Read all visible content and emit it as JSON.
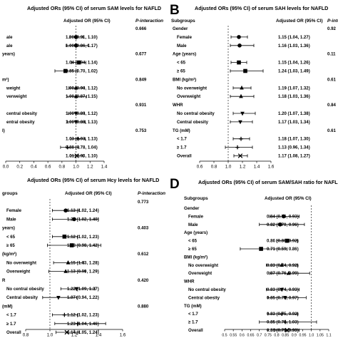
{
  "chart_data": [
    {
      "panel": "",
      "type": "forest",
      "title": "Adjusted ORs (95% CI) of serum SAM levels for NAFLD",
      "col_or": "Adjusted OR (95% CI)",
      "col_p": "P-interaction",
      "xlim": [
        0.0,
        1.4
      ],
      "ticks": [
        "0.0",
        "0.2",
        "0.4",
        "0.6",
        "0.8",
        "1.0",
        "1.2",
        "1.4"
      ],
      "rows": [
        {
          "label": "",
          "group": true,
          "p": "0.666"
        },
        {
          "label": "ale",
          "or": 1.0,
          "lo": 0.91,
          "hi": 1.1,
          "text": "1.00 (0.91, 1.10)",
          "marker": "circle"
        },
        {
          "label": "ale",
          "or": 1.0,
          "lo": 0.86,
          "hi": 1.17,
          "text": "1.00 (0.86, 1.17)",
          "marker": "circle"
        },
        {
          "label": "years)",
          "group": true,
          "p": "0.677"
        },
        {
          "label": "",
          "or": 1.04,
          "lo": 0.94,
          "hi": 1.14,
          "text": "1.04 (0.94, 1.14)",
          "marker": "square"
        },
        {
          "label": "",
          "or": 0.85,
          "lo": 0.7,
          "hi": 1.02,
          "text": "0.85 (0.70, 1.02)",
          "marker": "square"
        },
        {
          "label": "m²)",
          "group": true,
          "p": "0.849"
        },
        {
          "label": "weight",
          "or": 1.0,
          "lo": 0.9,
          "hi": 1.12,
          "text": "1.00 (0.90, 1.12)",
          "marker": "triangle"
        },
        {
          "label": "verweight",
          "or": 1.0,
          "lo": 0.87,
          "hi": 1.15,
          "text": "1.00 (0.87, 1.15)",
          "marker": "triangle"
        },
        {
          "label": "",
          "group": true,
          "p": "0.931"
        },
        {
          "label": "central obesity",
          "or": 1.0,
          "lo": 0.89,
          "hi": 1.12,
          "text": "1.00 (0.89, 1.12)",
          "marker": "tri-down"
        },
        {
          "label": "entral obesity",
          "or": 1.0,
          "lo": 0.88,
          "hi": 1.13,
          "text": "1.00 (0.88, 1.13)",
          "marker": "tri-down"
        },
        {
          "label": "I)",
          "group": true,
          "p": "0.753"
        },
        {
          "label": "",
          "or": 1.03,
          "lo": 0.93,
          "hi": 1.13,
          "text": "1.03 (0.93, 1.13)",
          "marker": "plus"
        },
        {
          "label": "",
          "or": 0.88,
          "lo": 0.78,
          "hi": 1.04,
          "text": "0.88 (0.78, 1.04)",
          "marker": "plus"
        },
        {
          "label": "",
          "or": 1.01,
          "lo": 0.93,
          "hi": 1.1,
          "text": "1.01 (0.93, 1.10)",
          "marker": "x"
        }
      ]
    },
    {
      "panel": "B",
      "type": "forest",
      "title": "Adjusted ORs (95% CI) of serum SAH levels for NAFLD",
      "col_group": "Subgroups",
      "col_or": "Adjusted OR (95% CI)",
      "col_p": "P-interactio",
      "xlim": [
        0.6,
        1.6
      ],
      "ticks": [
        "0.6",
        "0.8",
        "1.0",
        "1.2",
        "1.4",
        "1.6"
      ],
      "rows": [
        {
          "label": "Gender",
          "group": true,
          "p": "0.92"
        },
        {
          "label": "Female",
          "or": 1.15,
          "lo": 1.04,
          "hi": 1.27,
          "text": "1.15 (1.04, 1.27)",
          "marker": "circle"
        },
        {
          "label": "Male",
          "or": 1.16,
          "lo": 1.03,
          "hi": 1.36,
          "text": "1.16 (1.03, 1.36)",
          "marker": "circle"
        },
        {
          "label": "Age (years)",
          "group": true,
          "p": "0.11"
        },
        {
          "label": "< 65",
          "or": 1.15,
          "lo": 1.04,
          "hi": 1.26,
          "text": "1.15 (1.04, 1.26)",
          "marker": "square"
        },
        {
          "label": "≥ 65",
          "or": 1.24,
          "lo": 1.03,
          "hi": 1.49,
          "text": "1.24 (1.03, 1.49)",
          "marker": "square"
        },
        {
          "label": "BMI (kg/m²)",
          "group": true,
          "p": "0.61"
        },
        {
          "label": "No overweight",
          "or": 1.19,
          "lo": 1.07,
          "hi": 1.32,
          "text": "1.19 (1.07, 1.32)",
          "marker": "triangle"
        },
        {
          "label": "Overweight",
          "or": 1.18,
          "lo": 1.03,
          "hi": 1.36,
          "text": "1.18 (1.03, 1.36)",
          "marker": "triangle"
        },
        {
          "label": "WHR",
          "group": true,
          "p": "0.84"
        },
        {
          "label": "No central obesity",
          "or": 1.2,
          "lo": 1.07,
          "hi": 1.38,
          "text": "1.20 (1.07, 1.38)",
          "marker": "tri-down"
        },
        {
          "label": "Central obesity",
          "or": 1.17,
          "lo": 1.03,
          "hi": 1.34,
          "text": "1.17 (1.03, 1.34)",
          "marker": "tri-down"
        },
        {
          "label": "TG (mM)",
          "group": true,
          "p": "0.61"
        },
        {
          "label": "< 1.7",
          "or": 1.18,
          "lo": 1.07,
          "hi": 1.3,
          "text": "1.18 (1.07, 1.30)",
          "marker": "plus"
        },
        {
          "label": "≥ 1.7",
          "or": 1.13,
          "lo": 0.96,
          "hi": 1.34,
          "text": "1.13 (0.96, 1.34)",
          "marker": "plus"
        },
        {
          "label": "Overall",
          "or": 1.17,
          "lo": 1.08,
          "hi": 1.27,
          "text": "1.17 (1.08, 1.27)",
          "marker": "x"
        }
      ]
    },
    {
      "panel": "",
      "type": "forest",
      "title": "Adjusted ORs (95% CI) of serum Hcy levels for NAFLD",
      "col_group": "groups",
      "col_or": "Adjusted OR (95% CI)",
      "col_p": "P-interaction",
      "xlim": [
        0.8,
        1.6
      ],
      "ticks": [
        "0.8",
        "1.0",
        "1.2",
        "1.4",
        "1.6"
      ],
      "rows": [
        {
          "label": "",
          "group": true,
          "p": "0.773"
        },
        {
          "label": "Female",
          "or": 1.13,
          "lo": 1.02,
          "hi": 1.24,
          "text": "1.13 (1.02, 1.24)",
          "marker": "circle"
        },
        {
          "label": "Male",
          "or": 1.2,
          "lo": 1.02,
          "hi": 1.4,
          "text": "1.20 (1.02, 1.40)",
          "marker": "circle"
        },
        {
          "label": "years)",
          "group": true,
          "p": "0.403"
        },
        {
          "label": "< 65",
          "or": 1.12,
          "lo": 1.02,
          "hi": 1.23,
          "text": "1.12 (1.02, 1.23)",
          "marker": "square"
        },
        {
          "label": "≥ 65",
          "or": 1.18,
          "lo": 0.98,
          "hi": 1.42,
          "text": "1.18 (0.98, 1.42)",
          "marker": "square"
        },
        {
          "label": "(kg/m²)",
          "group": true,
          "p": "0.612"
        },
        {
          "label": "No overweight",
          "or": 1.15,
          "lo": 1.03,
          "hi": 1.28,
          "text": "1.15 (1.03, 1.28)",
          "marker": "triangle"
        },
        {
          "label": "Overweight",
          "or": 1.13,
          "lo": 0.99,
          "hi": 1.29,
          "text": "1.13 (0.99, 1.29)",
          "marker": "triangle"
        },
        {
          "label": "R",
          "group": true,
          "p": "0.420"
        },
        {
          "label": "No central obesity",
          "or": 1.22,
          "lo": 1.09,
          "hi": 1.37,
          "text": "1.22 (1.09, 1.37)",
          "marker": "tri-down"
        },
        {
          "label": "Central obesity",
          "or": 1.07,
          "lo": 0.94,
          "hi": 1.22,
          "text": "1.07 (0.94, 1.22)",
          "marker": "tri-down"
        },
        {
          "label": "(mM)",
          "group": true,
          "p": "0.880"
        },
        {
          "label": "< 1.7",
          "or": 1.12,
          "lo": 1.02,
          "hi": 1.23,
          "text": "1.12 (1.02, 1.23)",
          "marker": "plus"
        },
        {
          "label": "≥ 1.7",
          "or": 1.23,
          "lo": 1.04,
          "hi": 1.46,
          "text": "1.23 (1.04, 1.46)",
          "marker": "plus"
        },
        {
          "label": "Overall",
          "or": 1.14,
          "lo": 1.05,
          "hi": 1.24,
          "text": "1.14 (1.05, 1.24)",
          "marker": "x"
        }
      ]
    },
    {
      "panel": "D",
      "type": "forest",
      "title": "Adjusted ORs (95% CI) of serum SAM/SAH ratio for NAFL",
      "col_group": "Subgroups",
      "col_or": "Adjusted OR (95% CI)",
      "col_p": "",
      "xlim": [
        0.5,
        1.1
      ],
      "ticks": [
        "0.5",
        "0.55",
        "0.6",
        "0.65",
        "0.7",
        "0.75",
        "0.8",
        "0.85",
        "0.9",
        "0.95",
        "1.0",
        "1.05",
        "1.1"
      ],
      "rows": [
        {
          "label": "Gender",
          "group": true,
          "p": ""
        },
        {
          "label": "Female",
          "or": 0.84,
          "lo": 0.76,
          "hi": 0.93,
          "text": "0.84 (0.76, 0.93)",
          "marker": "circle"
        },
        {
          "label": "Male",
          "or": 0.82,
          "lo": 0.7,
          "hi": 0.96,
          "text": "0.82 (0.70, 0.96)",
          "marker": "circle"
        },
        {
          "label": "Age (years)",
          "group": true,
          "p": ""
        },
        {
          "label": "< 65",
          "or": 0.86,
          "lo": 0.8,
          "hi": 0.92,
          "text": "0.86 (0.80, 0.92)",
          "marker": "square"
        },
        {
          "label": "≥ 65",
          "or": 0.71,
          "lo": 0.59,
          "hi": 0.86,
          "text": "0.71 (0.59, 0.86)",
          "marker": "square"
        },
        {
          "label": "BMI (kg/m²)",
          "group": true,
          "p": ""
        },
        {
          "label": "No overweight",
          "or": 0.83,
          "lo": 0.74,
          "hi": 0.92,
          "text": "0.83 (0.74, 0.92)",
          "marker": "triangle"
        },
        {
          "label": "Overweight",
          "or": 0.87,
          "lo": 0.76,
          "hi": 0.99,
          "text": "0.87 (0.76, 0.99)",
          "marker": "triangle"
        },
        {
          "label": "WHR",
          "group": true,
          "p": ""
        },
        {
          "label": "No central obesity",
          "or": 0.83,
          "lo": 0.74,
          "hi": 0.93,
          "text": "0.83 (0.74, 0.93)",
          "marker": "tri-down"
        },
        {
          "label": "Central obesity",
          "or": 0.85,
          "lo": 0.75,
          "hi": 0.97,
          "text": "0.85 (0.75, 0.97)",
          "marker": "tri-down"
        },
        {
          "label": "TG (mM)",
          "group": true,
          "p": ""
        },
        {
          "label": "< 1.7",
          "or": 0.83,
          "lo": 0.75,
          "hi": 0.92,
          "text": "0.83 (0.75, 0.92)",
          "marker": "plus"
        },
        {
          "label": "≥ 1.7",
          "or": 0.85,
          "lo": 0.7,
          "hi": 1.03,
          "text": "0.85 (0.70, 1.03)",
          "marker": "plus"
        },
        {
          "label": "Overall",
          "or": 0.86,
          "lo": 0.79,
          "hi": 0.93,
          "text": "0.86 (0.79, 0.93)",
          "marker": "x"
        }
      ]
    }
  ]
}
